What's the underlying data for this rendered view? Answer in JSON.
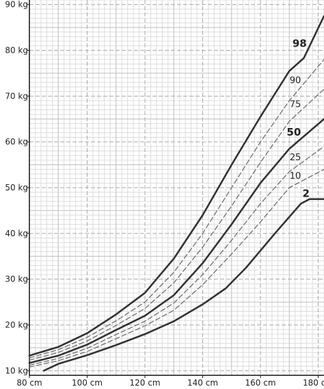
{
  "chart_data": {
    "type": "line",
    "title": "",
    "xlabel": "",
    "ylabel": "",
    "xlim": [
      80,
      182
    ],
    "ylim": [
      9,
      91
    ],
    "grid": true,
    "x_ticks": [
      {
        "value": 80,
        "label": "80 cm"
      },
      {
        "value": 100,
        "label": "100 cm"
      },
      {
        "value": 120,
        "label": "120 cm"
      },
      {
        "value": 140,
        "label": "140 cm"
      },
      {
        "value": 160,
        "label": "160 cm"
      },
      {
        "value": 180,
        "label": "180 cm"
      }
    ],
    "y_ticks": [
      {
        "value": 10,
        "label": "10 kg"
      },
      {
        "value": 20,
        "label": "20 kg"
      },
      {
        "value": 30,
        "label": "30 kg"
      },
      {
        "value": 40,
        "label": "40 kg"
      },
      {
        "value": 50,
        "label": "50 kg"
      },
      {
        "value": 60,
        "label": "60 kg"
      },
      {
        "value": 70,
        "label": "70 kg"
      },
      {
        "value": 80,
        "label": "80 kg"
      },
      {
        "value": 90,
        "label": "90 kg"
      }
    ],
    "series": [
      {
        "name": "98",
        "style": "solid-bold",
        "x": [
          80,
          90,
          100,
          110,
          120,
          130,
          140,
          150,
          160,
          170,
          175,
          182
        ],
        "y": [
          13.3,
          15.2,
          18.2,
          22.3,
          27.0,
          34.5,
          44.0,
          55.0,
          65.5,
          75.5,
          78.3,
          87.5
        ]
      },
      {
        "name": "90",
        "style": "dashed",
        "x": [
          80,
          90,
          100,
          110,
          120,
          130,
          140,
          150,
          160,
          170,
          182
        ],
        "y": [
          12.8,
          14.6,
          17.3,
          20.9,
          25.0,
          31.5,
          40.0,
          50.0,
          60.0,
          69.0,
          78.0
        ]
      },
      {
        "name": "75",
        "style": "dashed",
        "x": [
          80,
          90,
          100,
          110,
          120,
          130,
          140,
          150,
          160,
          170,
          182
        ],
        "y": [
          12.3,
          14.0,
          16.5,
          19.9,
          23.6,
          29.2,
          37.0,
          46.0,
          55.5,
          64.5,
          71.5
        ]
      },
      {
        "name": "50",
        "style": "solid-bold",
        "x": [
          80,
          90,
          100,
          110,
          120,
          130,
          140,
          150,
          160,
          170,
          182
        ],
        "y": [
          11.7,
          13.3,
          15.7,
          18.9,
          22.0,
          26.5,
          33.5,
          42.0,
          51.0,
          58.5,
          65.0
        ]
      },
      {
        "name": "25",
        "style": "dashed",
        "x": [
          80,
          90,
          100,
          110,
          120,
          130,
          140,
          150,
          160,
          170,
          182
        ],
        "y": [
          11.2,
          12.7,
          14.9,
          17.9,
          20.8,
          24.8,
          31.0,
          38.5,
          46.5,
          53.5,
          59.0
        ]
      },
      {
        "name": "10",
        "style": "dashed",
        "x": [
          80,
          90,
          100,
          110,
          120,
          130,
          140,
          150,
          160,
          170,
          182
        ],
        "y": [
          10.8,
          12.2,
          14.2,
          17.0,
          19.8,
          23.2,
          28.8,
          35.5,
          42.5,
          50.0,
          54.0
        ]
      },
      {
        "name": "2",
        "style": "solid-bold",
        "x": [
          85,
          90,
          100,
          110,
          120,
          130,
          140,
          148,
          155,
          165,
          174,
          177,
          182
        ],
        "y": [
          10.0,
          11.5,
          13.4,
          15.6,
          18.0,
          20.8,
          24.5,
          28.0,
          32.5,
          40.0,
          46.5,
          47.5,
          47.5
        ]
      }
    ]
  },
  "colors": {
    "grid_minor": "#dcdcdc",
    "grid_major": "#a9a9a9",
    "axis": "#111111",
    "curve": "#333333",
    "curve_dashed": "#6e6e6e",
    "text": "#222222"
  }
}
